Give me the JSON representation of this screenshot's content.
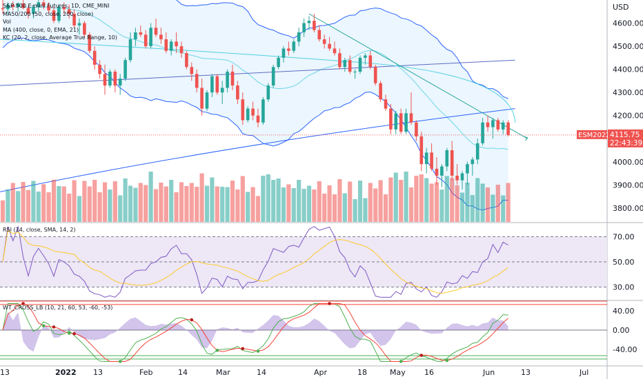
{
  "legends": {
    "main": [
      "S&P 500 E-mini Futures, 1D, CME_MINI",
      "MA50/200 (50, close, 200, close)",
      "Vol",
      "MA (400, close, 0, EMA, 21)",
      "KC (20, 2, close, Average True Range, 10)"
    ],
    "rsi": "RSI (14, close, SMA, 14, 2)",
    "wt": "WT_CROSS_LB (10, 21, 60, 53, -60, -53)"
  },
  "price_axis": {
    "currency": "USD",
    "ticks": [
      "4600.00",
      "4500.00",
      "4400.00",
      "4300.00",
      "4200.00",
      "4100.00",
      "4000.00",
      "3900.00",
      "3800.00"
    ]
  },
  "price_label": {
    "symbol": "ESM2022",
    "price": "4115.75",
    "countdown": "22:43:39"
  },
  "rsi_axis": {
    "ticks": [
      "70.00",
      "50.00",
      "30.00"
    ]
  },
  "wt_axis": {
    "ticks": [
      "40.00",
      "0.00",
      "-40.00"
    ]
  },
  "time_axis": {
    "labels": [
      "13",
      "2022",
      "13",
      "Feb",
      "14",
      "Mar",
      "14",
      "Apr",
      "18",
      "May",
      "16",
      "Jun",
      "13",
      "Jul"
    ],
    "bold": [
      false,
      true,
      false,
      false,
      false,
      false,
      false,
      false,
      false,
      false,
      false,
      false,
      false,
      false
    ]
  },
  "colors": {
    "up": "#26a69a",
    "down": "#ef5350",
    "bb": "#2962ff",
    "bb_fill": "#e3f2fd",
    "rsi_line": "#7e57c2",
    "rsi_bg": "#ede7f6",
    "wt_green": "#4caf50",
    "wt_red": "#f44336",
    "price_label_bg": "#ef5350"
  },
  "chart_data": {
    "type": "candlestick",
    "y_range": [
      3740,
      4700
    ],
    "rsi_range": [
      20,
      80
    ],
    "wt_range": [
      -70,
      60
    ],
    "ohlc": [
      [
        4665,
        4700,
        4640,
        4660
      ],
      [
        4660,
        4690,
        4640,
        4680
      ],
      [
        4680,
        4695,
        4655,
        4670
      ],
      [
        4670,
        4690,
        4650,
        4685
      ],
      [
        4685,
        4700,
        4660,
        4665
      ],
      [
        4665,
        4675,
        4620,
        4640
      ],
      [
        4640,
        4680,
        4620,
        4670
      ],
      [
        4670,
        4700,
        4650,
        4690
      ],
      [
        4690,
        4700,
        4660,
        4675
      ],
      [
        4675,
        4690,
        4640,
        4655
      ],
      [
        4655,
        4670,
        4600,
        4610
      ],
      [
        4610,
        4680,
        4600,
        4670
      ],
      [
        4670,
        4690,
        4640,
        4660
      ],
      [
        4660,
        4680,
        4620,
        4640
      ],
      [
        4640,
        4660,
        4580,
        4590
      ],
      [
        4590,
        4620,
        4550,
        4600
      ],
      [
        4600,
        4610,
        4540,
        4550
      ],
      [
        4550,
        4560,
        4470,
        4480
      ],
      [
        4480,
        4500,
        4400,
        4420
      ],
      [
        4420,
        4440,
        4360,
        4380
      ],
      [
        4380,
        4420,
        4290,
        4330
      ],
      [
        4330,
        4400,
        4320,
        4390
      ],
      [
        4390,
        4400,
        4300,
        4330
      ],
      [
        4330,
        4380,
        4290,
        4360
      ],
      [
        4360,
        4450,
        4350,
        4440
      ],
      [
        4440,
        4560,
        4430,
        4530
      ],
      [
        4530,
        4580,
        4500,
        4560
      ],
      [
        4560,
        4590,
        4540,
        4550
      ],
      [
        4550,
        4570,
        4490,
        4500
      ],
      [
        4500,
        4600,
        4490,
        4580
      ],
      [
        4580,
        4620,
        4540,
        4550
      ],
      [
        4550,
        4580,
        4510,
        4530
      ],
      [
        4530,
        4560,
        4470,
        4480
      ],
      [
        4480,
        4530,
        4460,
        4520
      ],
      [
        4520,
        4560,
        4470,
        4500
      ],
      [
        4500,
        4520,
        4450,
        4470
      ],
      [
        4470,
        4480,
        4400,
        4410
      ],
      [
        4410,
        4430,
        4350,
        4380
      ],
      [
        4380,
        4400,
        4300,
        4320
      ],
      [
        4320,
        4360,
        4200,
        4230
      ],
      [
        4230,
        4310,
        4220,
        4300
      ],
      [
        4300,
        4380,
        4280,
        4370
      ],
      [
        4370,
        4380,
        4290,
        4300
      ],
      [
        4300,
        4350,
        4250,
        4320
      ],
      [
        4320,
        4400,
        4300,
        4390
      ],
      [
        4390,
        4420,
        4310,
        4330
      ],
      [
        4330,
        4350,
        4250,
        4270
      ],
      [
        4270,
        4300,
        4160,
        4180
      ],
      [
        4180,
        4240,
        4170,
        4230
      ],
      [
        4230,
        4260,
        4180,
        4200
      ],
      [
        4200,
        4230,
        4150,
        4170
      ],
      [
        4170,
        4280,
        4160,
        4270
      ],
      [
        4270,
        4340,
        4260,
        4330
      ],
      [
        4330,
        4420,
        4320,
        4410
      ],
      [
        4410,
        4460,
        4400,
        4450
      ],
      [
        4450,
        4500,
        4430,
        4490
      ],
      [
        4490,
        4520,
        4460,
        4480
      ],
      [
        4480,
        4530,
        4470,
        4520
      ],
      [
        4520,
        4580,
        4500,
        4560
      ],
      [
        4560,
        4620,
        4540,
        4600
      ],
      [
        4600,
        4630,
        4570,
        4610
      ],
      [
        4610,
        4640,
        4560,
        4570
      ],
      [
        4570,
        4590,
        4520,
        4530
      ],
      [
        4530,
        4550,
        4490,
        4510
      ],
      [
        4510,
        4540,
        4480,
        4490
      ],
      [
        4490,
        4520,
        4460,
        4470
      ],
      [
        4470,
        4490,
        4400,
        4410
      ],
      [
        4410,
        4450,
        4390,
        4440
      ],
      [
        4440,
        4460,
        4380,
        4390
      ],
      [
        4390,
        4400,
        4360,
        4390
      ],
      [
        4390,
        4460,
        4380,
        4450
      ],
      [
        4450,
        4470,
        4420,
        4460
      ],
      [
        4460,
        4480,
        4400,
        4410
      ],
      [
        4410,
        4420,
        4330,
        4340
      ],
      [
        4340,
        4350,
        4260,
        4270
      ],
      [
        4270,
        4290,
        4220,
        4230
      ],
      [
        4230,
        4250,
        4120,
        4140
      ],
      [
        4140,
        4220,
        4120,
        4210
      ],
      [
        4210,
        4230,
        4120,
        4130
      ],
      [
        4130,
        4230,
        4120,
        4210
      ],
      [
        4210,
        4300,
        4160,
        4170
      ],
      [
        4170,
        4180,
        4090,
        4110
      ],
      [
        4110,
        4130,
        3960,
        3990
      ],
      [
        3990,
        4060,
        3950,
        4040
      ],
      [
        4040,
        4080,
        3960,
        3970
      ],
      [
        3970,
        4020,
        3900,
        3940
      ],
      [
        3940,
        3990,
        3890,
        3980
      ],
      [
        3980,
        4060,
        3960,
        4050
      ],
      [
        4050,
        4090,
        3920,
        3940
      ],
      [
        3940,
        3990,
        3900,
        3920
      ],
      [
        3920,
        3960,
        3880,
        3950
      ],
      [
        3950,
        4000,
        3900,
        3990
      ],
      [
        3990,
        4020,
        3940,
        4010
      ],
      [
        4010,
        4100,
        3990,
        4080
      ],
      [
        4080,
        4190,
        4070,
        4170
      ],
      [
        4170,
        4200,
        4130,
        4150
      ],
      [
        4150,
        4190,
        4100,
        4180
      ],
      [
        4180,
        4190,
        4130,
        4140
      ],
      [
        4140,
        4180,
        4120,
        4170
      ],
      [
        4170,
        4180,
        4110,
        4116
      ]
    ]
  }
}
